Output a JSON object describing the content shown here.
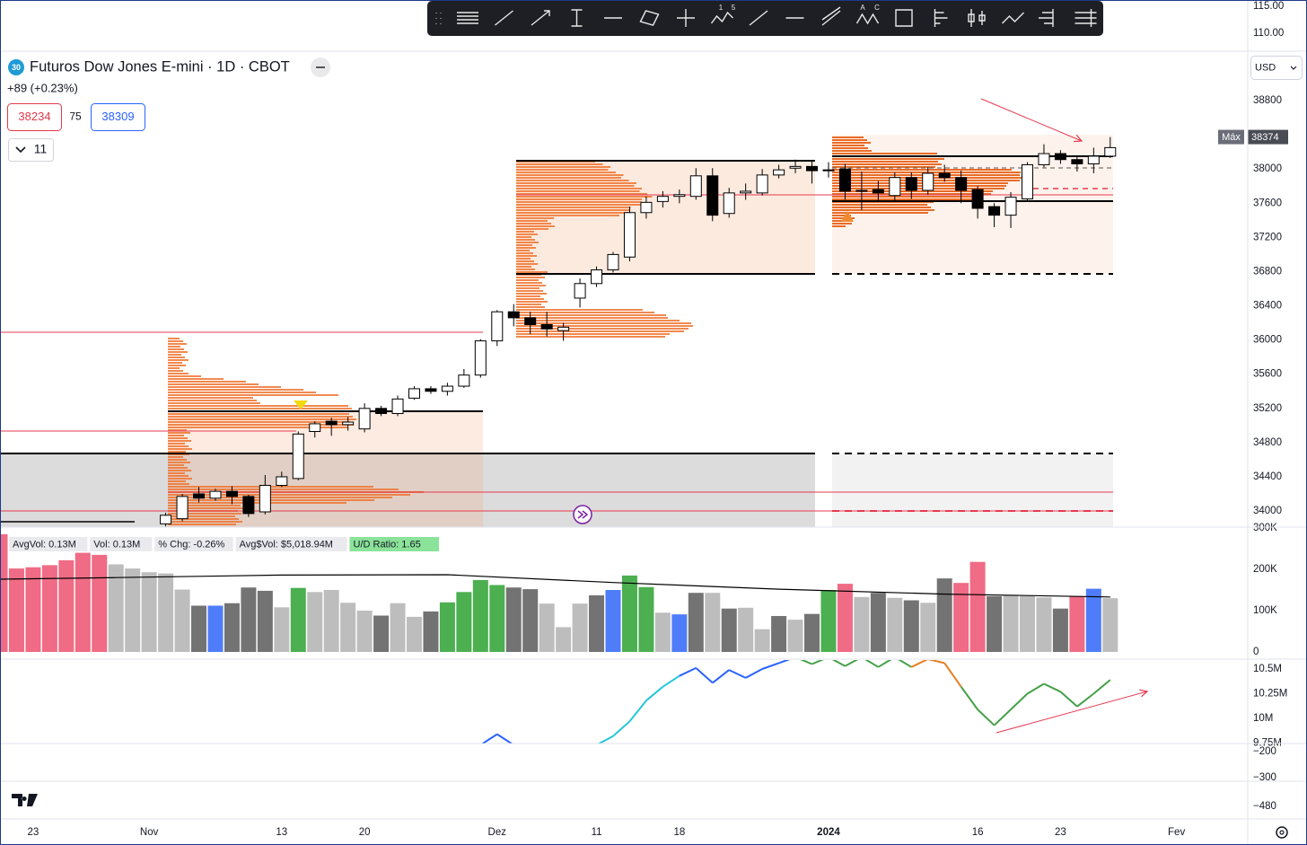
{
  "ui": {
    "toolbar_labels": [
      "1",
      "5",
      "A",
      "C"
    ],
    "symbol_badge": "30",
    "symbol": "Futuros Dow Jones E-mini · 1D · CBOT",
    "change": "+89 (+0.23%)",
    "sell_price": "38234",
    "spread": "75",
    "buy_price": "38309",
    "indicators_count": "11",
    "currency": "USD",
    "top_pane_ticks": [
      "115.00",
      "110.00"
    ],
    "bottom_pane_ticks": [
      "−200",
      "−300",
      "−480"
    ]
  },
  "chart_data": [
    {
      "type": "candlestick",
      "x": [
        8,
        9,
        10,
        11,
        12,
        13,
        14,
        15,
        16,
        17,
        18,
        19,
        20,
        21,
        22,
        23,
        24,
        25,
        26,
        27,
        28,
        29,
        30,
        31,
        32,
        33,
        34,
        35,
        36,
        37,
        38,
        39,
        40,
        41,
        42,
        43,
        44,
        45,
        46,
        47,
        48,
        49,
        50,
        51,
        52,
        53,
        54,
        55,
        56,
        57,
        58,
        59,
        60,
        61,
        62,
        63,
        64,
        65
      ],
      "open": [
        33850,
        33910,
        34200,
        34150,
        34230,
        34170,
        33990,
        34300,
        34380,
        34930,
        35050,
        35010,
        34960,
        35200,
        35140,
        35320,
        35430,
        35400,
        35460,
        35590,
        35990,
        36330,
        36260,
        36180,
        36110,
        36490,
        36660,
        36820,
        36970,
        37490,
        37620,
        37680,
        37680,
        37920,
        37480,
        37720,
        37720,
        37930,
        38010,
        38030,
        37980,
        38000,
        37740,
        37760,
        37690,
        37900,
        37750,
        37950,
        37900,
        37760,
        37560,
        37460,
        37650,
        38050,
        38180,
        38110,
        38060,
        38150
      ],
      "high": [
        33980,
        34200,
        34280,
        34260,
        34290,
        34190,
        34420,
        34460,
        34930,
        35050,
        35090,
        35100,
        35260,
        35230,
        35350,
        35460,
        35460,
        35500,
        35660,
        36010,
        36350,
        36420,
        36330,
        36330,
        36200,
        36720,
        36860,
        37030,
        37560,
        37680,
        37740,
        37760,
        38010,
        38010,
        37780,
        37830,
        38000,
        38050,
        38110,
        38090,
        38080,
        38060,
        37970,
        37860,
        37960,
        37960,
        38020,
        38050,
        37980,
        37800,
        37600,
        37730,
        38080,
        38290,
        38220,
        38160,
        38250,
        38374
      ],
      "low": [
        33820,
        33880,
        34100,
        34120,
        34080,
        33930,
        33960,
        34280,
        34360,
        34860,
        34880,
        34940,
        34920,
        35110,
        35110,
        35300,
        35370,
        35350,
        35440,
        35560,
        35930,
        36160,
        36070,
        36040,
        35990,
        36380,
        36620,
        36790,
        36920,
        37420,
        37550,
        37600,
        37640,
        37390,
        37430,
        37640,
        37690,
        37890,
        37950,
        37830,
        37900,
        37640,
        37520,
        37630,
        37620,
        37650,
        37700,
        37850,
        37600,
        37420,
        37320,
        37310,
        37620,
        38020,
        38060,
        37970,
        37950,
        38130
      ],
      "close": [
        33950,
        34170,
        34150,
        34230,
        34170,
        33970,
        34300,
        34400,
        34900,
        35020,
        35010,
        35040,
        35200,
        35140,
        35310,
        35430,
        35400,
        35460,
        35590,
        35990,
        36330,
        36260,
        36180,
        36130,
        36150,
        36660,
        36820,
        37000,
        37490,
        37610,
        37680,
        37700,
        37920,
        37460,
        37720,
        37740,
        37930,
        37990,
        38030,
        37980,
        37990,
        37740,
        37750,
        37720,
        37900,
        37750,
        37950,
        37900,
        37750,
        37540,
        37460,
        37670,
        38050,
        38180,
        38110,
        38060,
        38150,
        38250
      ],
      "up_color": "#ffffff",
      "down_color": "#000000",
      "xlim": [
        -2,
        73.3
      ],
      "ylim": [
        33822,
        39378
      ],
      "yticks": [
        38800,
        38000,
        37600,
        37200,
        36800,
        36400,
        36000,
        35600,
        35200,
        34800,
        34400,
        34000
      ],
      "xticks": [
        {
          "value": 0,
          "label": "23"
        },
        {
          "value": 7,
          "label": "Nov"
        },
        {
          "value": 15,
          "label": "13"
        },
        {
          "value": 20,
          "label": "20"
        },
        {
          "value": 28,
          "label": "Dez"
        },
        {
          "value": 34,
          "label": "11"
        },
        {
          "value": 39,
          "label": "18"
        },
        {
          "value": 48,
          "label": "2024"
        },
        {
          "value": 57,
          "label": "16"
        },
        {
          "value": 62,
          "label": "23"
        },
        {
          "value": 69,
          "label": "Fev"
        }
      ],
      "max_marker": {
        "label": "Máx",
        "value": 38374
      }
    },
    {
      "type": "bar",
      "x": [
        -2,
        -1,
        0,
        1,
        2,
        3,
        4,
        5,
        6,
        7,
        8,
        9,
        10,
        11,
        12,
        13,
        14,
        15,
        16,
        17,
        18,
        19,
        20,
        21,
        22,
        23,
        24,
        25,
        26,
        27,
        28,
        29,
        30,
        31,
        32,
        33,
        34,
        35,
        36,
        37,
        38,
        39,
        40,
        41,
        42,
        43,
        44,
        45,
        46,
        47,
        48,
        49,
        50,
        51,
        52,
        53,
        54,
        55,
        56,
        57,
        58,
        59,
        60,
        61,
        62,
        63,
        64,
        65
      ],
      "values": [
        285000,
        202000,
        205000,
        210000,
        222000,
        240000,
        235000,
        212000,
        202000,
        193000,
        190000,
        151000,
        112000,
        112000,
        118000,
        156000,
        148000,
        108000,
        155000,
        145000,
        150000,
        119000,
        100000,
        88000,
        118000,
        85000,
        98000,
        120000,
        145000,
        174000,
        162000,
        156000,
        152000,
        117000,
        60000,
        117000,
        137000,
        150000,
        185000,
        157000,
        95000,
        91000,
        143000,
        143000,
        105000,
        107000,
        55000,
        87000,
        78000,
        92000,
        150000,
        165000,
        133000,
        143000,
        131000,
        125000,
        119000,
        178000,
        167000,
        218000,
        135000,
        137000,
        135000,
        132000,
        105000,
        135000,
        153000,
        130000
      ],
      "colors": [
        "#f06b85",
        "#f06b85",
        "#f06b85",
        "#f06b85",
        "#f06b85",
        "#f06b85",
        "#f06b85",
        "#bdbdbd",
        "#bdbdbd",
        "#bdbdbd",
        "#bdbdbd",
        "#bdbdbd",
        "#737373",
        "#4f7df9",
        "#737373",
        "#737373",
        "#737373",
        "#bdbdbd",
        "#4caf50",
        "#bdbdbd",
        "#bdbdbd",
        "#bdbdbd",
        "#bdbdbd",
        "#737373",
        "#bdbdbd",
        "#bdbdbd",
        "#737373",
        "#4caf50",
        "#4caf50",
        "#4caf50",
        "#4caf50",
        "#737373",
        "#737373",
        "#bdbdbd",
        "#bdbdbd",
        "#bdbdbd",
        "#737373",
        "#4f7df9",
        "#4caf50",
        "#4caf50",
        "#bdbdbd",
        "#4f7df9",
        "#737373",
        "#bdbdbd",
        "#737373",
        "#bdbdbd",
        "#bdbdbd",
        "#737373",
        "#bdbdbd",
        "#737373",
        "#4caf50",
        "#f06b85",
        "#bdbdbd",
        "#737373",
        "#bdbdbd",
        "#737373",
        "#bdbdbd",
        "#737373",
        "#f06b85",
        "#f06b85",
        "#737373",
        "#bdbdbd",
        "#bdbdbd",
        "#bdbdbd",
        "#737373",
        "#f06b85",
        "#4f7df9",
        "#bdbdbd"
      ],
      "ma": {
        "x": [
          -2,
          5,
          15,
          25,
          35,
          45,
          55,
          65
        ],
        "values": [
          176000,
          180000,
          186000,
          187000,
          168000,
          152000,
          140000,
          133000
        ],
        "color": "#000000"
      },
      "xlim": [
        -2,
        73.3
      ],
      "ylim": [
        0,
        300000
      ],
      "yticks": [
        {
          "value": 300000,
          "label": "300K"
        },
        {
          "value": 200000,
          "label": "200K"
        },
        {
          "value": 100000,
          "label": "100K"
        },
        0
      ],
      "info_labels": [
        "AvgVol: 0.13M",
        "Vol: 0.13M",
        "% Chg: -0.26%",
        "Avg$Vol: $5,018.94M",
        "U/D Ratio: 1.65"
      ]
    },
    {
      "type": "line",
      "x": [
        27,
        28,
        29,
        30,
        31,
        32,
        33,
        34,
        35,
        36,
        37,
        38,
        39,
        40,
        41,
        42,
        43,
        44,
        45,
        46,
        47,
        48,
        49,
        50,
        51,
        52,
        53,
        54,
        55,
        56,
        57,
        58,
        59,
        60,
        61,
        62,
        63,
        64,
        65
      ],
      "values": [
        9730000,
        9840000,
        9730000,
        null,
        null,
        null,
        null,
        9730000,
        9820000,
        9970000,
        10180000,
        10320000,
        10430000,
        10510000,
        10360000,
        10490000,
        10410000,
        10500000,
        10560000,
        10620000,
        10550000,
        10620000,
        10530000,
        10620000,
        10520000,
        10620000,
        10520000,
        10600000,
        10560000,
        10320000,
        10090000,
        9930000,
        10090000,
        10250000,
        10350000,
        10270000,
        10120000,
        10250000,
        10390000
      ],
      "colors": [
        "#2962ff",
        "#2962ff",
        "#2962ff",
        null,
        null,
        null,
        null,
        "#26c6da",
        "#26c6da",
        "#26c6da",
        "#26c6da",
        "#26c6da",
        "#2962ff",
        "#2962ff",
        "#2962ff",
        "#2962ff",
        "#2962ff",
        "#2962ff",
        "#2962ff",
        "#43a047",
        "#43a047",
        "#43a047",
        "#43a047",
        "#43a047",
        "#43a047",
        "#43a047",
        "#e67e22",
        "#e67e22",
        "#e67e22",
        "#43a047",
        "#43a047",
        "#43a047",
        "#43a047",
        "#43a047",
        "#43a047",
        "#43a047",
        "#43a047",
        "#43a047",
        "#43a047"
      ],
      "xlim": [
        -2,
        73.3
      ],
      "ylim": [
        9745000,
        10591000
      ],
      "yticks": [
        {
          "value": 10500000,
          "label": "10.5M"
        },
        {
          "value": 10250000,
          "label": "10.25M"
        },
        {
          "value": 10000000,
          "label": "10M"
        },
        {
          "value": 9750000,
          "label": "9.75M"
        }
      ]
    }
  ]
}
